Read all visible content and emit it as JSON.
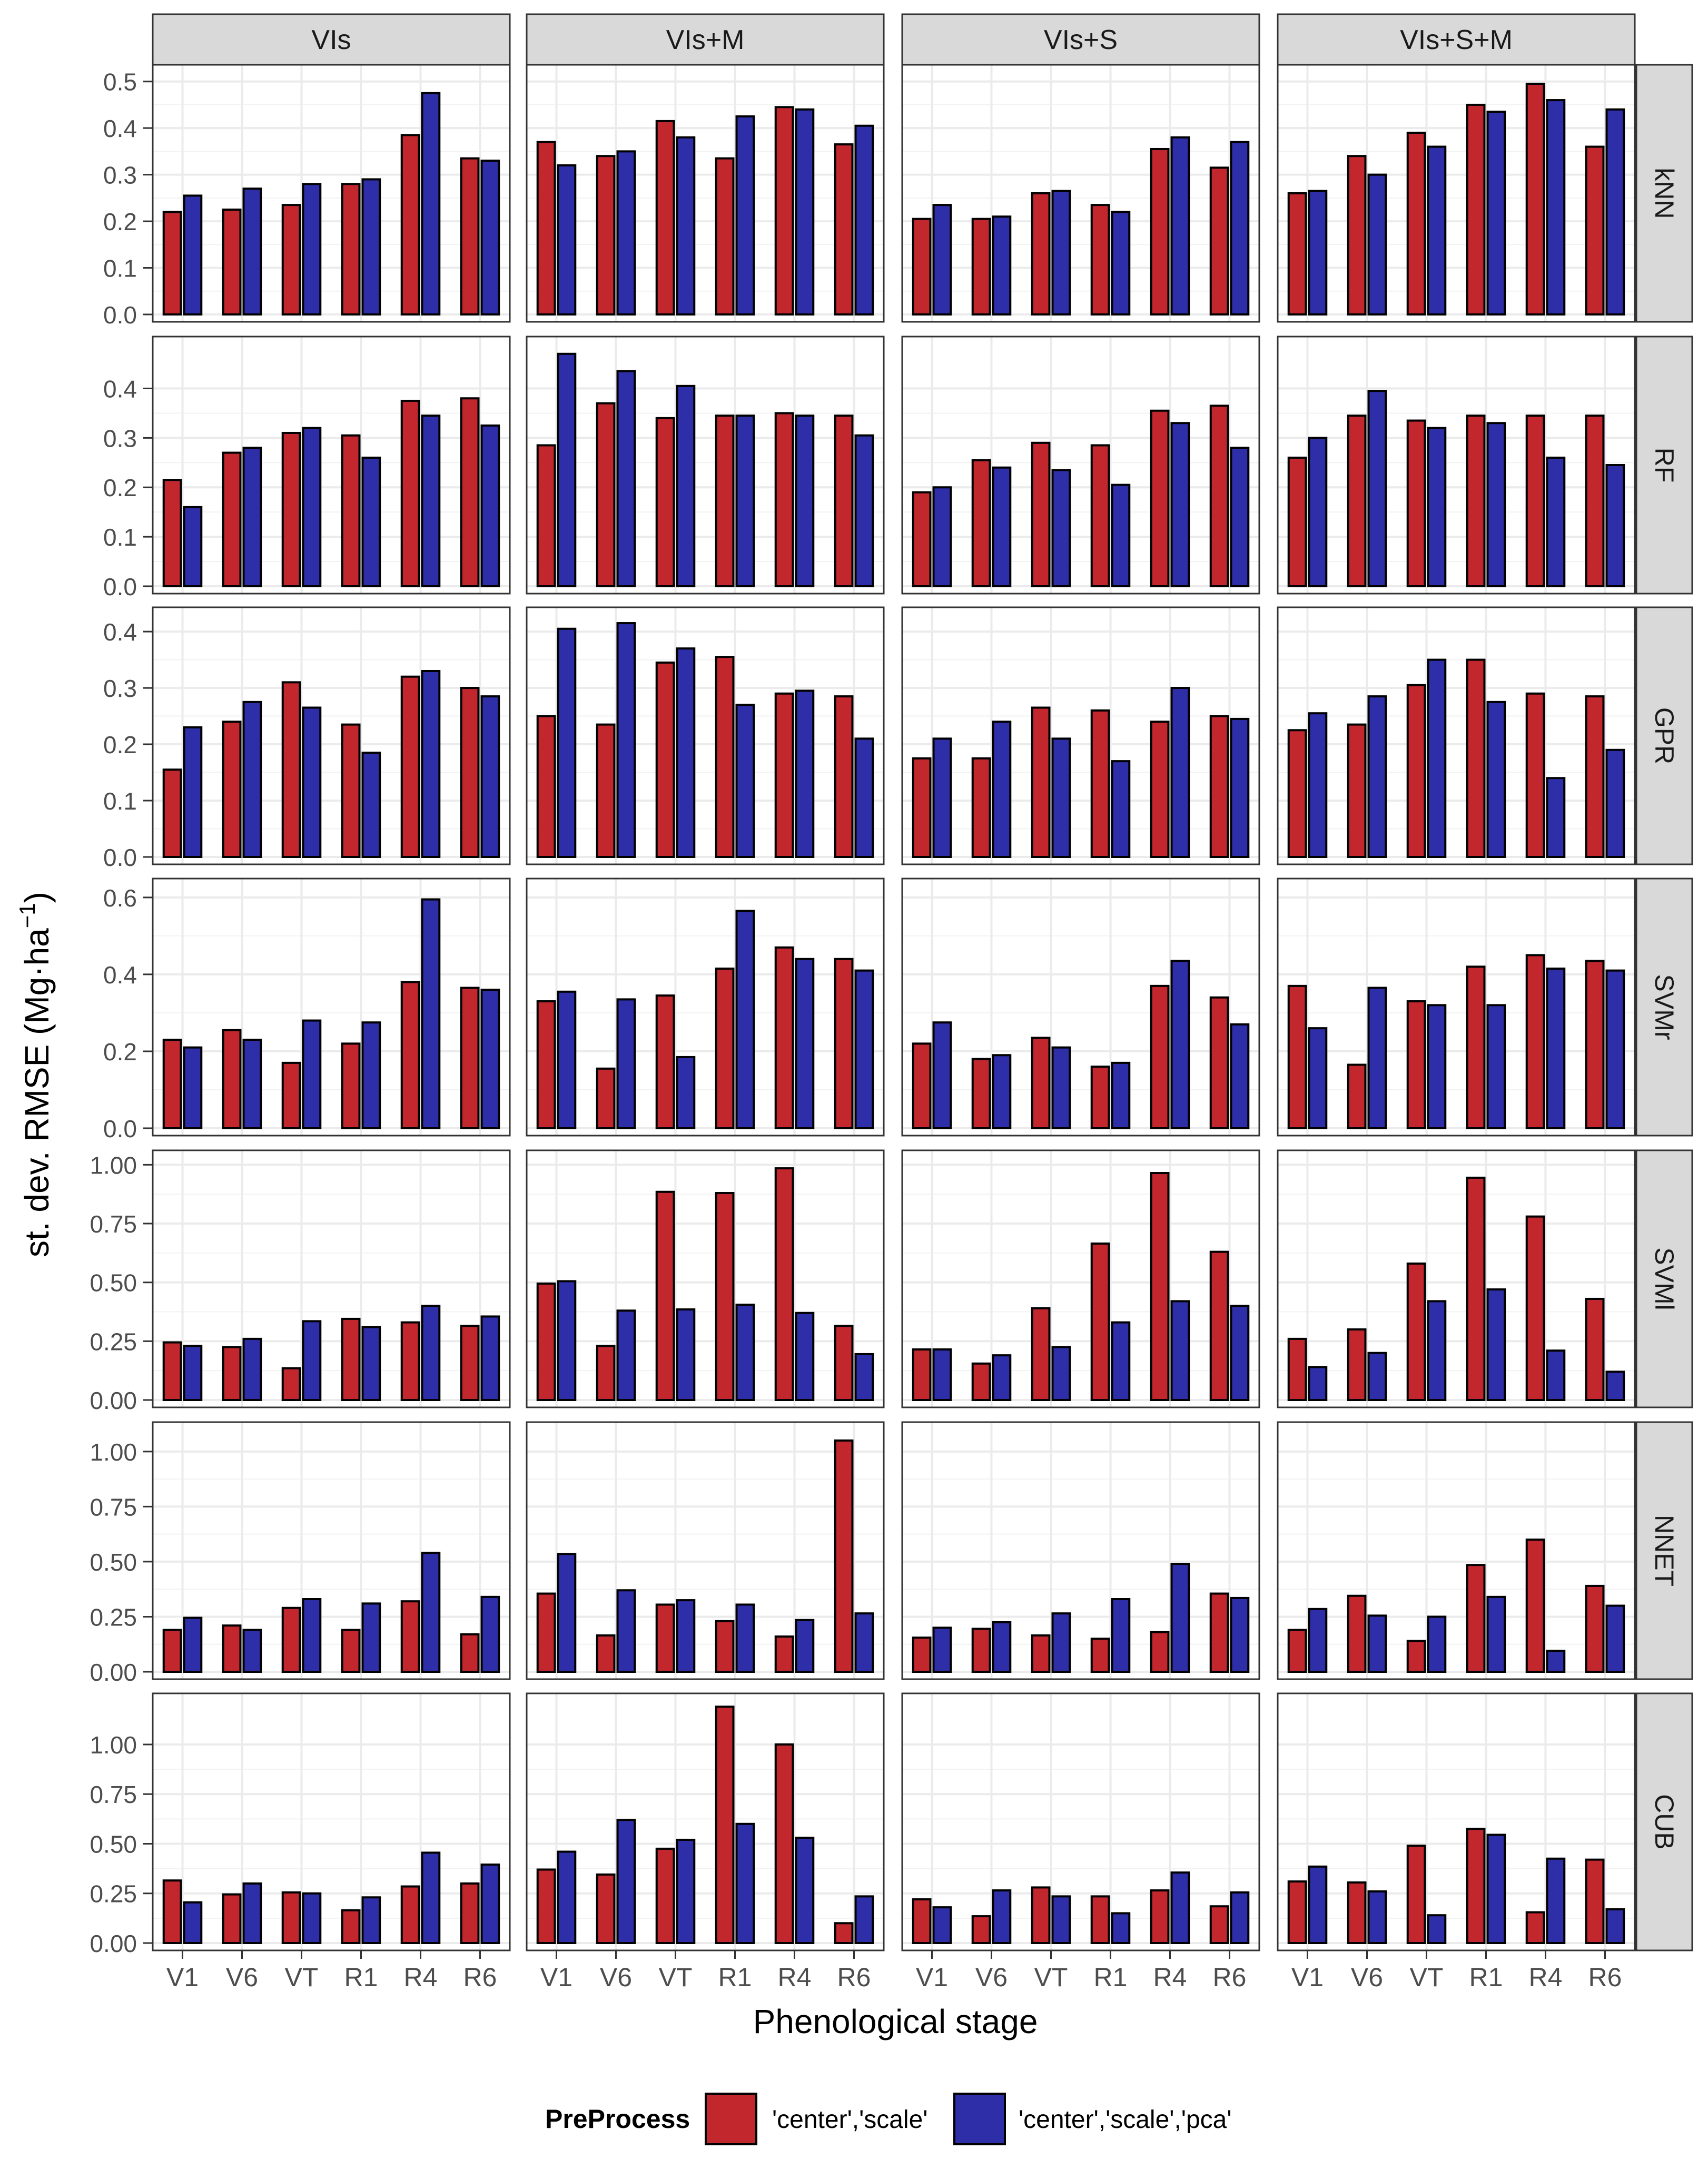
{
  "chart_data": {
    "type": "bar",
    "ylabel": "st. dev. RMSE",
    "ylabel_unit": "(Mg·ha",
    "ylabel_sup": "−1",
    "ylabel_close": ")",
    "xlabel": "Phenological stage",
    "categories": [
      "V1",
      "V6",
      "VT",
      "R1",
      "R4",
      "R6"
    ],
    "columns": [
      "VIs",
      "VIs+M",
      "VIs+S",
      "VIs+S+M"
    ],
    "legend": {
      "title": "PreProcess",
      "placement": "bottom",
      "entries": [
        {
          "label": "'center','scale'",
          "color": "#C1272D"
        },
        {
          "label": "'center','scale','pca'",
          "color": "#2E2EA8"
        }
      ]
    },
    "colors": {
      "series1": "#C1272D",
      "series2": "#2E2EA8",
      "strip": "#D9D9D9",
      "grid": "#EBEBEB",
      "panel_border": "#333333"
    },
    "rows": [
      {
        "name": "kNN",
        "ylim": [
          0,
          0.52
        ],
        "ticks": [
          "0.0",
          "0.1",
          "0.2",
          "0.3",
          "0.4",
          "0.5"
        ],
        "tick_values": [
          0,
          0.1,
          0.2,
          0.3,
          0.4,
          0.5
        ],
        "panels": [
          {
            "s1": [
              0.22,
              0.225,
              0.235,
              0.28,
              0.385,
              0.335
            ],
            "s2": [
              0.255,
              0.27,
              0.28,
              0.29,
              0.475,
              0.33
            ]
          },
          {
            "s1": [
              0.37,
              0.34,
              0.415,
              0.335,
              0.445,
              0.365
            ],
            "s2": [
              0.32,
              0.35,
              0.38,
              0.425,
              0.44,
              0.405
            ]
          },
          {
            "s1": [
              0.205,
              0.205,
              0.26,
              0.235,
              0.355,
              0.315
            ],
            "s2": [
              0.235,
              0.21,
              0.265,
              0.22,
              0.38,
              0.37
            ]
          },
          {
            "s1": [
              0.26,
              0.34,
              0.39,
              0.45,
              0.495,
              0.36
            ],
            "s2": [
              0.265,
              0.3,
              0.36,
              0.435,
              0.46,
              0.44
            ]
          }
        ]
      },
      {
        "name": "RF",
        "ylim": [
          0,
          0.49
        ],
        "ticks": [
          "0.0",
          "0.1",
          "0.2",
          "0.3",
          "0.4"
        ],
        "tick_values": [
          0,
          0.1,
          0.2,
          0.3,
          0.4
        ],
        "panels": [
          {
            "s1": [
              0.215,
              0.27,
              0.31,
              0.305,
              0.375,
              0.38
            ],
            "s2": [
              0.16,
              0.28,
              0.32,
              0.26,
              0.345,
              0.325
            ]
          },
          {
            "s1": [
              0.285,
              0.37,
              0.34,
              0.345,
              0.35,
              0.345
            ],
            "s2": [
              0.47,
              0.435,
              0.405,
              0.345,
              0.345,
              0.305
            ]
          },
          {
            "s1": [
              0.19,
              0.255,
              0.29,
              0.285,
              0.355,
              0.365
            ],
            "s2": [
              0.2,
              0.24,
              0.235,
              0.205,
              0.33,
              0.28
            ]
          },
          {
            "s1": [
              0.26,
              0.345,
              0.335,
              0.345,
              0.345,
              0.345
            ],
            "s2": [
              0.3,
              0.395,
              0.32,
              0.33,
              0.26,
              0.245
            ]
          }
        ]
      },
      {
        "name": "GPR",
        "ylim": [
          0,
          0.43
        ],
        "ticks": [
          "0.0",
          "0.1",
          "0.2",
          "0.3",
          "0.4"
        ],
        "tick_values": [
          0,
          0.1,
          0.2,
          0.3,
          0.4
        ],
        "panels": [
          {
            "s1": [
              0.155,
              0.24,
              0.31,
              0.235,
              0.32,
              0.3
            ],
            "s2": [
              0.23,
              0.275,
              0.265,
              0.185,
              0.33,
              0.285
            ]
          },
          {
            "s1": [
              0.25,
              0.235,
              0.345,
              0.355,
              0.29,
              0.285
            ],
            "s2": [
              0.405,
              0.415,
              0.37,
              0.27,
              0.295,
              0.21
            ]
          },
          {
            "s1": [
              0.175,
              0.175,
              0.265,
              0.26,
              0.24,
              0.25
            ],
            "s2": [
              0.21,
              0.24,
              0.21,
              0.17,
              0.3,
              0.245
            ]
          },
          {
            "s1": [
              0.225,
              0.235,
              0.305,
              0.35,
              0.29,
              0.285
            ],
            "s2": [
              0.255,
              0.285,
              0.35,
              0.275,
              0.14,
              0.19
            ]
          }
        ]
      },
      {
        "name": "SVMr",
        "ylim": [
          0,
          0.63
        ],
        "ticks": [
          "0.0",
          "0.2",
          "0.4",
          "0.6"
        ],
        "tick_values": [
          0,
          0.2,
          0.4,
          0.6
        ],
        "panels": [
          {
            "s1": [
              0.23,
              0.255,
              0.17,
              0.22,
              0.38,
              0.365
            ],
            "s2": [
              0.21,
              0.23,
              0.28,
              0.275,
              0.595,
              0.36
            ]
          },
          {
            "s1": [
              0.33,
              0.155,
              0.345,
              0.415,
              0.47,
              0.44
            ],
            "s2": [
              0.355,
              0.335,
              0.185,
              0.565,
              0.44,
              0.41
            ]
          },
          {
            "s1": [
              0.22,
              0.18,
              0.235,
              0.16,
              0.37,
              0.34
            ],
            "s2": [
              0.275,
              0.19,
              0.21,
              0.17,
              0.435,
              0.27
            ]
          },
          {
            "s1": [
              0.37,
              0.165,
              0.33,
              0.42,
              0.45,
              0.435
            ],
            "s2": [
              0.26,
              0.365,
              0.32,
              0.32,
              0.415,
              0.41
            ]
          }
        ]
      },
      {
        "name": "SVMl",
        "ylim": [
          0,
          1.03
        ],
        "ticks": [
          "0.00",
          "0.25",
          "0.50",
          "0.75",
          "1.00"
        ],
        "tick_values": [
          0,
          0.25,
          0.5,
          0.75,
          1.0
        ],
        "panels": [
          {
            "s1": [
              0.245,
              0.225,
              0.135,
              0.345,
              0.33,
              0.315
            ],
            "s2": [
              0.23,
              0.26,
              0.335,
              0.31,
              0.4,
              0.355
            ]
          },
          {
            "s1": [
              0.495,
              0.23,
              0.885,
              0.88,
              0.985,
              0.315
            ],
            "s2": [
              0.505,
              0.38,
              0.385,
              0.405,
              0.37,
              0.195
            ]
          },
          {
            "s1": [
              0.215,
              0.155,
              0.39,
              0.665,
              0.965,
              0.63
            ],
            "s2": [
              0.215,
              0.19,
              0.225,
              0.33,
              0.42,
              0.4
            ]
          },
          {
            "s1": [
              0.26,
              0.3,
              0.58,
              0.945,
              0.78,
              0.43
            ],
            "s2": [
              0.14,
              0.2,
              0.42,
              0.47,
              0.21,
              0.12
            ]
          }
        ]
      },
      {
        "name": "NNET",
        "ylim": [
          0,
          1.1
        ],
        "ticks": [
          "0.00",
          "0.25",
          "0.50",
          "0.75",
          "1.00"
        ],
        "tick_values": [
          0,
          0.25,
          0.5,
          0.75,
          1.0
        ],
        "panels": [
          {
            "s1": [
              0.19,
              0.21,
              0.29,
              0.19,
              0.32,
              0.17
            ],
            "s2": [
              0.245,
              0.19,
              0.33,
              0.31,
              0.54,
              0.34
            ]
          },
          {
            "s1": [
              0.355,
              0.165,
              0.305,
              0.23,
              0.16,
              1.05
            ],
            "s2": [
              0.535,
              0.37,
              0.325,
              0.305,
              0.235,
              0.265
            ]
          },
          {
            "s1": [
              0.155,
              0.195,
              0.165,
              0.15,
              0.18,
              0.355
            ],
            "s2": [
              0.2,
              0.225,
              0.265,
              0.33,
              0.49,
              0.335
            ]
          },
          {
            "s1": [
              0.19,
              0.345,
              0.14,
              0.485,
              0.6,
              0.39
            ],
            "s2": [
              0.285,
              0.255,
              0.25,
              0.34,
              0.095,
              0.3
            ]
          }
        ]
      },
      {
        "name": "CUB",
        "ylim": [
          0,
          1.22
        ],
        "ticks": [
          "0.00",
          "0.25",
          "0.50",
          "0.75",
          "1.00"
        ],
        "tick_values": [
          0,
          0.25,
          0.5,
          0.75,
          1.0
        ],
        "panels": [
          {
            "s1": [
              0.315,
              0.245,
              0.255,
              0.165,
              0.285,
              0.3
            ],
            "s2": [
              0.205,
              0.3,
              0.25,
              0.23,
              0.455,
              0.395
            ]
          },
          {
            "s1": [
              0.37,
              0.345,
              0.475,
              1.19,
              1.0,
              0.1
            ],
            "s2": [
              0.46,
              0.62,
              0.52,
              0.6,
              0.53,
              0.235
            ]
          },
          {
            "s1": [
              0.22,
              0.135,
              0.28,
              0.235,
              0.265,
              0.185
            ],
            "s2": [
              0.18,
              0.265,
              0.235,
              0.15,
              0.355,
              0.255
            ]
          },
          {
            "s1": [
              0.31,
              0.305,
              0.49,
              0.575,
              0.155,
              0.42
            ],
            "s2": [
              0.385,
              0.26,
              0.14,
              0.545,
              0.425,
              0.17
            ]
          }
        ]
      }
    ]
  }
}
